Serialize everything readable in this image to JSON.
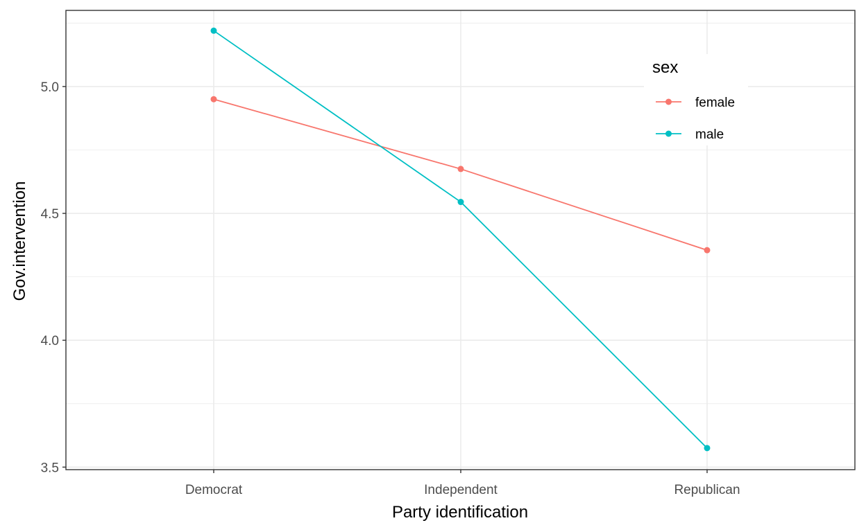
{
  "chart_data": {
    "type": "line",
    "xlabel": "Party identification",
    "ylabel": "Gov.intervention",
    "categories": [
      "Democrat",
      "Independent",
      "Republican"
    ],
    "series": [
      {
        "name": "female",
        "color": "#F8766D",
        "values": [
          4.95,
          4.675,
          4.355
        ]
      },
      {
        "name": "male",
        "color": "#00BFC4",
        "values": [
          5.22,
          4.545,
          3.575
        ]
      }
    ],
    "ylim": [
      3.49,
      5.3
    ],
    "yticks": [
      "3.5",
      "4.0",
      "4.5",
      "5.0"
    ],
    "ytick_values": [
      3.5,
      4.0,
      4.5,
      5.0
    ],
    "legend": {
      "title": "sex",
      "position": "top-right inside"
    },
    "grid": true,
    "theme": "bw"
  }
}
